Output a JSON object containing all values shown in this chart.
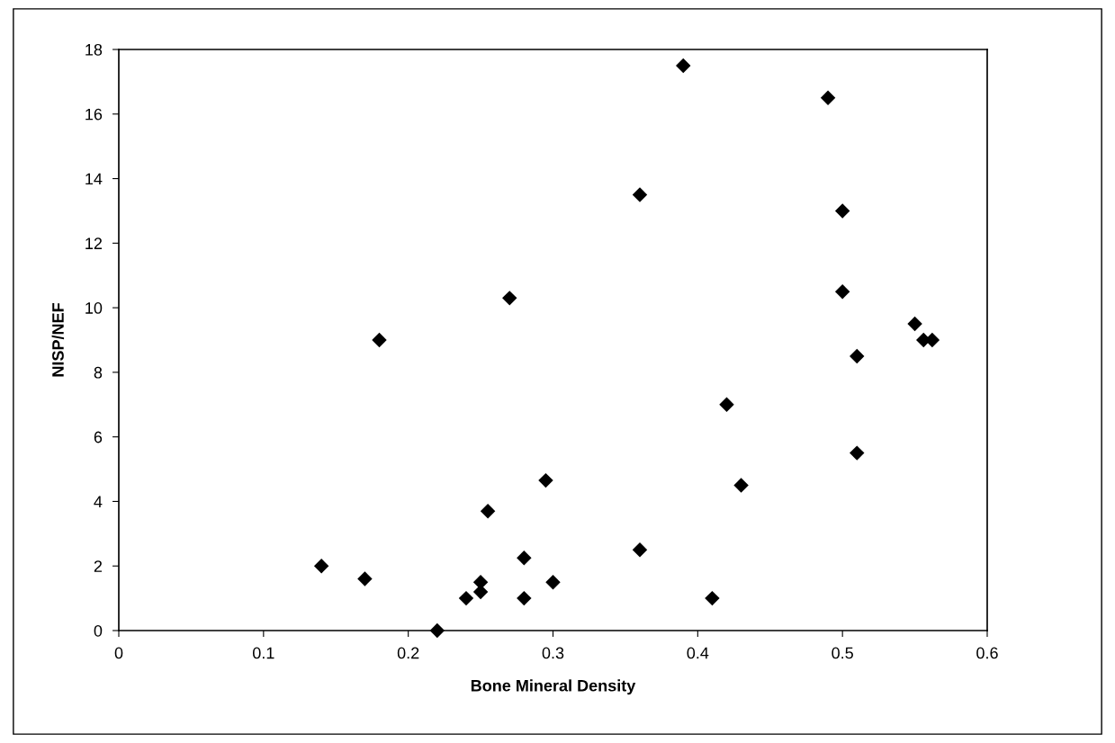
{
  "chart_data": {
    "type": "scatter",
    "xlabel": "Bone Mineral Density",
    "ylabel": "NISP/NEF",
    "x": [
      0.14,
      0.17,
      0.22,
      0.24,
      0.25,
      0.25,
      0.255,
      0.28,
      0.28,
      0.295,
      0.3,
      0.36,
      0.41,
      0.42,
      0.43,
      0.51,
      0.39,
      0.49,
      0.36,
      0.5,
      0.5,
      0.55,
      0.556,
      0.562,
      0.51,
      0.18,
      0.27
    ],
    "values": [
      2,
      1.6,
      0,
      1,
      1.2,
      1.5,
      3.7,
      2.25,
      1,
      4.65,
      1.5,
      2.5,
      1,
      7,
      4.5,
      5.5,
      17.5,
      16.5,
      13.5,
      13,
      10.5,
      9.5,
      9,
      9,
      8.5,
      9,
      10.3
    ],
    "color": "#000000",
    "marker": "diamond",
    "xlim": [
      0,
      0.6
    ],
    "xticks": [
      0,
      0.1,
      0.2,
      0.3,
      0.4,
      0.5,
      0.6
    ],
    "ylim": [
      0,
      18
    ],
    "yticks": [
      0,
      2,
      4,
      6,
      8,
      10,
      12,
      14,
      16,
      18
    ],
    "grid": false,
    "legend": false
  }
}
